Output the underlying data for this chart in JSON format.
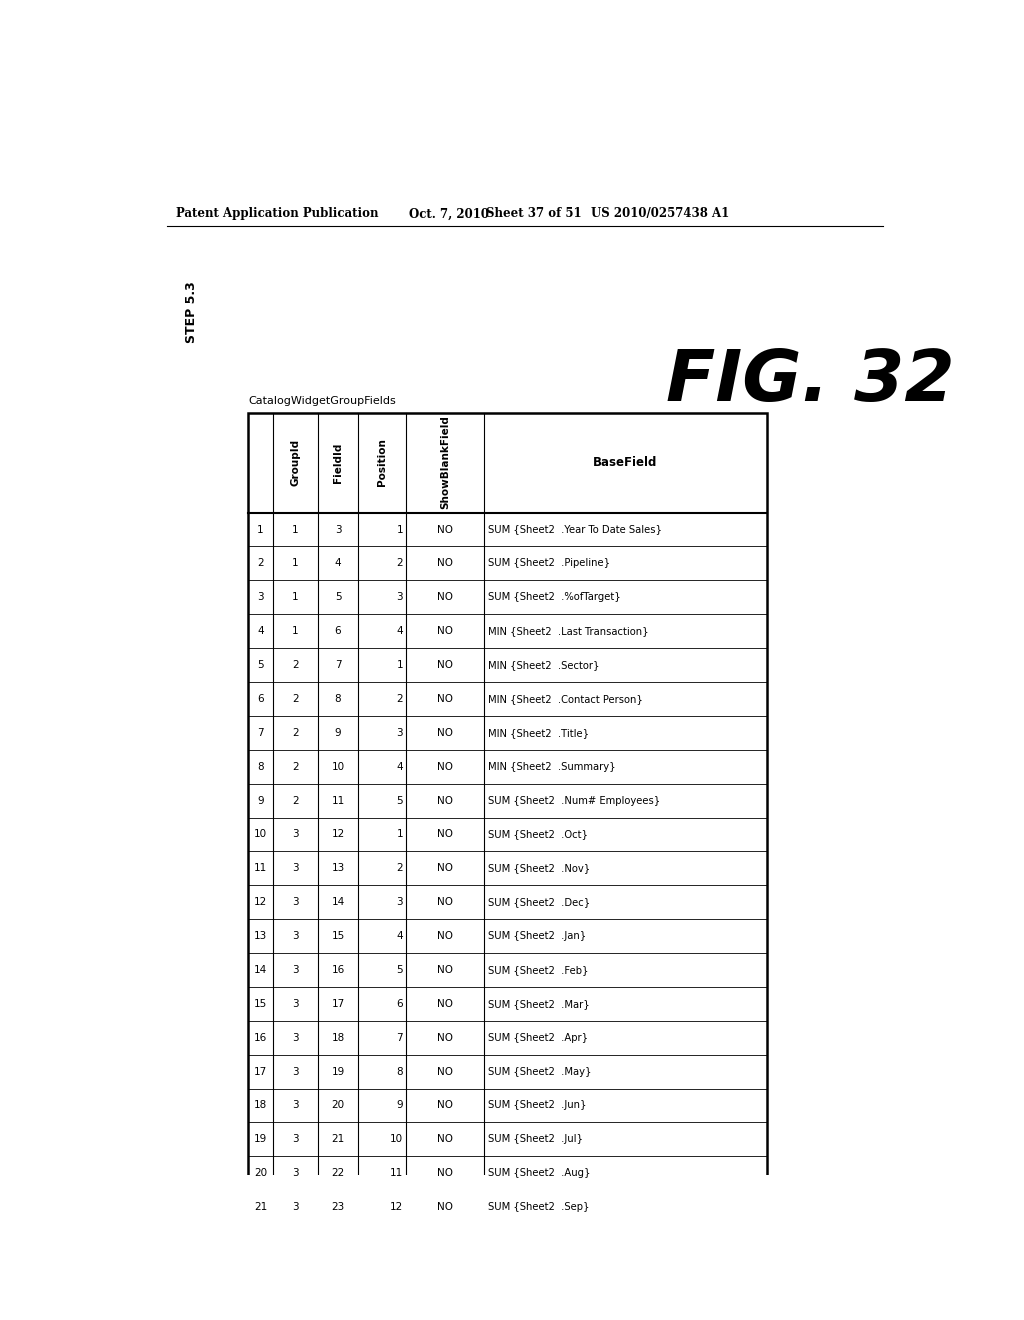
{
  "header_text": "Patent Application Publication",
  "date_text": "Oct. 7, 2010",
  "sheet_text": "Sheet 37 of 51",
  "patent_text": "US 2010/0257438 A1",
  "step_label": "STEP 5.3",
  "fig_label": "FIG. 32",
  "table_name": "CatalogWidgetGroupFields",
  "columns": [
    "",
    "GroupId",
    "FieldId",
    "Position",
    "ShowBlankField",
    "BaseField"
  ],
  "rows": [
    [
      "1",
      "1",
      "3",
      "1",
      "NO",
      "SUM {Sheet2  .Year To Date Sales}"
    ],
    [
      "2",
      "1",
      "4",
      "2",
      "NO",
      "SUM {Sheet2  .Pipeline}"
    ],
    [
      "3",
      "1",
      "5",
      "3",
      "NO",
      "SUM {Sheet2  .%ofTarget}"
    ],
    [
      "4",
      "1",
      "6",
      "4",
      "NO",
      "MIN {Sheet2  .Last Transaction}"
    ],
    [
      "5",
      "2",
      "7",
      "1",
      "NO",
      "MIN {Sheet2  .Sector}"
    ],
    [
      "6",
      "2",
      "8",
      "2",
      "NO",
      "MIN {Sheet2  .Contact Person}"
    ],
    [
      "7",
      "2",
      "9",
      "3",
      "NO",
      "MIN {Sheet2  .Title}"
    ],
    [
      "8",
      "2",
      "10",
      "4",
      "NO",
      "MIN {Sheet2  .Summary}"
    ],
    [
      "9",
      "2",
      "11",
      "5",
      "NO",
      "SUM {Sheet2  .Num# Employees}"
    ],
    [
      "10",
      "3",
      "12",
      "1",
      "NO",
      "SUM {Sheet2  .Oct}"
    ],
    [
      "11",
      "3",
      "13",
      "2",
      "NO",
      "SUM {Sheet2  .Nov}"
    ],
    [
      "12",
      "3",
      "14",
      "3",
      "NO",
      "SUM {Sheet2  .Dec}"
    ],
    [
      "13",
      "3",
      "15",
      "4",
      "NO",
      "SUM {Sheet2  .Jan}"
    ],
    [
      "14",
      "3",
      "16",
      "5",
      "NO",
      "SUM {Sheet2  .Feb}"
    ],
    [
      "15",
      "3",
      "17",
      "6",
      "NO",
      "SUM {Sheet2  .Mar}"
    ],
    [
      "16",
      "3",
      "18",
      "7",
      "NO",
      "SUM {Sheet2  .Apr}"
    ],
    [
      "17",
      "3",
      "19",
      "8",
      "NO",
      "SUM {Sheet2  .May}"
    ],
    [
      "18",
      "3",
      "20",
      "9",
      "NO",
      "SUM {Sheet2  .Jun}"
    ],
    [
      "19",
      "3",
      "21",
      "10",
      "NO",
      "SUM {Sheet2  .Jul}"
    ],
    [
      "20",
      "3",
      "22",
      "11",
      "NO",
      "SUM {Sheet2  .Aug}"
    ],
    [
      "21",
      "3",
      "23",
      "12",
      "NO",
      "SUM {Sheet2  .Sep}"
    ]
  ],
  "bg_color": "#ffffff",
  "text_color": "#000000"
}
